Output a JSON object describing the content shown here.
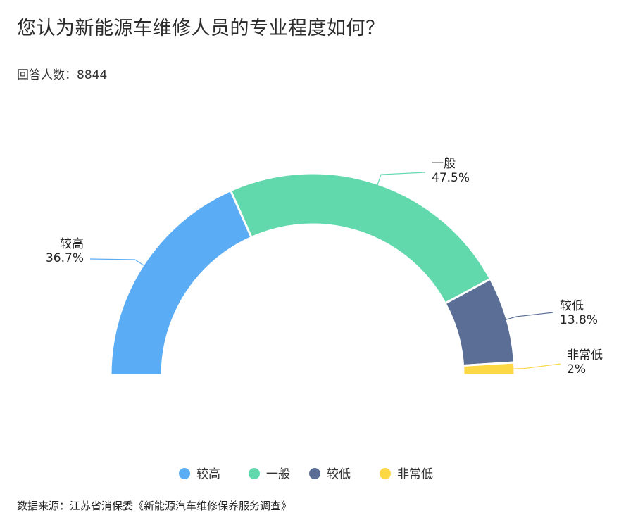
{
  "title": "您认为新能源车维修人员的专业程度如何？",
  "subtitle": "回答人数：8844",
  "source": "数据来源：江苏省消保委《新能源汽车维修保养服务调查》",
  "chart_data": {
    "type": "pie",
    "variant": "half-donut",
    "categories": [
      "较高",
      "一般",
      "较低",
      "非常低"
    ],
    "values": [
      36.7,
      47.5,
      13.8,
      2
    ],
    "value_labels": [
      "36.7%",
      "47.5%",
      "13.8%",
      "2%"
    ],
    "colors": [
      "#5AACF5",
      "#62D9AD",
      "#5B6E96",
      "#FDD845"
    ],
    "legend_position": "bottom"
  }
}
